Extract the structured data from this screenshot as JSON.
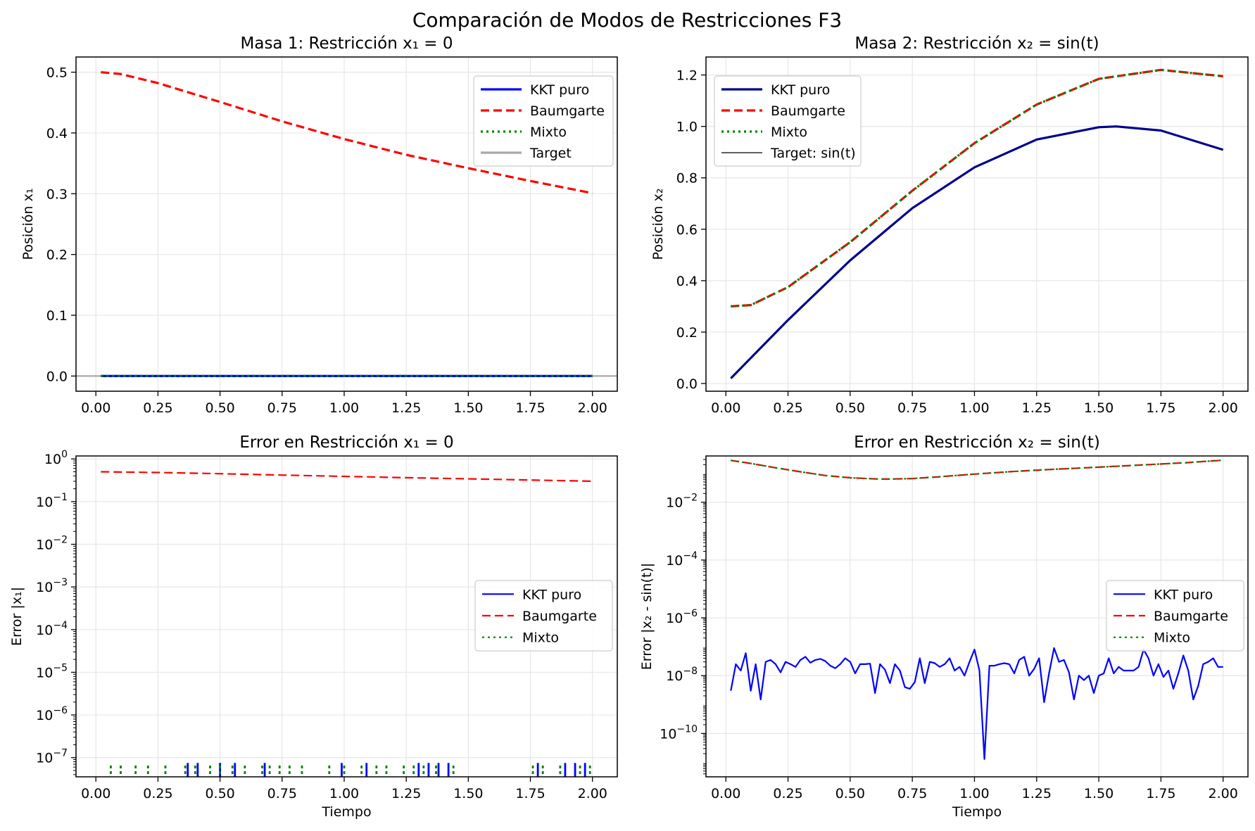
{
  "figure": {
    "suptitle": "Comparación de Modos de Restricciones F3"
  },
  "colors": {
    "kkt": "#0000ff",
    "kkt_dark": "#00008b",
    "baum": "#ff0000",
    "mixto": "#008000",
    "target": "#a9a9a9",
    "target_dark": "#000000",
    "grid": "#e6e6e6"
  },
  "chart_data": [
    {
      "id": "p1",
      "type": "line",
      "title": "Masa 1: Restricción x₁ = 0",
      "xlabel": "",
      "ylabel": "Posición x₁",
      "xlim": [
        -0.08,
        2.1
      ],
      "ylim": [
        -0.025,
        0.525
      ],
      "yscale": "linear",
      "grid": true,
      "legend": "top-right",
      "xticks": [
        0,
        0.25,
        0.5,
        0.75,
        1.0,
        1.25,
        1.5,
        1.75,
        2.0
      ],
      "xticklabels": [
        "0.00",
        "0.25",
        "0.50",
        "0.75",
        "1.00",
        "1.25",
        "1.50",
        "1.75",
        "2.00"
      ],
      "yticks": [
        0,
        0.1,
        0.2,
        0.3,
        0.4,
        0.5
      ],
      "yticklabels": [
        "0.0",
        "0.1",
        "0.2",
        "0.3",
        "0.4",
        "0.5"
      ],
      "hline": {
        "y": 0,
        "name": "Target"
      },
      "series": [
        {
          "name": "KKT puro",
          "style": "solid",
          "x": [
            0.02,
            2.0
          ],
          "y": [
            0,
            0
          ]
        },
        {
          "name": "Baumgarte",
          "style": "dashed",
          "x": [
            0.02,
            0.1,
            0.25,
            0.5,
            0.75,
            1.0,
            1.25,
            1.5,
            1.75,
            2.0
          ],
          "y": [
            0.5,
            0.497,
            0.482,
            0.451,
            0.419,
            0.39,
            0.364,
            0.342,
            0.321,
            0.301
          ]
        },
        {
          "name": "Mixto",
          "style": "dotted",
          "x": [
            0.02,
            2.0
          ],
          "y": [
            0,
            0
          ]
        }
      ],
      "legend_entries": [
        "KKT puro",
        "Baumgarte",
        "Mixto",
        "Target"
      ]
    },
    {
      "id": "p2",
      "type": "line",
      "title": "Masa 2: Restricción x₂ = sin(t)",
      "xlabel": "",
      "ylabel": "Posición x₂",
      "xlim": [
        -0.08,
        2.1
      ],
      "ylim": [
        -0.03,
        1.27
      ],
      "yscale": "linear",
      "grid": true,
      "legend": "top-left",
      "xticks": [
        0,
        0.25,
        0.5,
        0.75,
        1.0,
        1.25,
        1.5,
        1.75,
        2.0
      ],
      "xticklabels": [
        "0.00",
        "0.25",
        "0.50",
        "0.75",
        "1.00",
        "1.25",
        "1.50",
        "1.75",
        "2.00"
      ],
      "yticks": [
        0,
        0.2,
        0.4,
        0.6,
        0.8,
        1.0,
        1.2
      ],
      "yticklabels": [
        "0.0",
        "0.2",
        "0.4",
        "0.6",
        "0.8",
        "1.0",
        "1.2"
      ],
      "series": [
        {
          "name": "KKT puro",
          "style": "solid",
          "x": [
            0.02,
            0.25,
            0.5,
            0.75,
            1.0,
            1.25,
            1.5,
            1.57,
            1.75,
            2.0
          ],
          "y": [
            0.02,
            0.247,
            0.479,
            0.682,
            0.841,
            0.949,
            0.997,
            1.0,
            0.984,
            0.909
          ]
        },
        {
          "name": "Baumgarte",
          "style": "dashed",
          "x": [
            0.02,
            0.1,
            0.25,
            0.5,
            0.75,
            1.0,
            1.25,
            1.5,
            1.75,
            2.0
          ],
          "y": [
            0.3,
            0.305,
            0.375,
            0.55,
            0.75,
            0.935,
            1.085,
            1.185,
            1.22,
            1.195
          ]
        },
        {
          "name": "Mixto",
          "style": "dotted",
          "x": [
            0.02,
            0.1,
            0.25,
            0.5,
            0.75,
            1.0,
            1.25,
            1.5,
            1.75,
            2.0
          ],
          "y": [
            0.3,
            0.305,
            0.375,
            0.55,
            0.75,
            0.935,
            1.085,
            1.185,
            1.22,
            1.195
          ]
        }
      ],
      "legend_entries": [
        "KKT puro",
        "Baumgarte",
        "Mixto",
        "Target: sin(t)"
      ]
    },
    {
      "id": "p3",
      "type": "line",
      "title": "Error en Restricción x₁ = 0",
      "xlabel": "Tiempo",
      "ylabel": "Error |x₁|",
      "xlim": [
        -0.08,
        2.1
      ],
      "ylim_exp": [
        -7.45,
        0.07
      ],
      "yscale": "log",
      "grid": true,
      "legend": "center-right",
      "xticks": [
        0,
        0.25,
        0.5,
        0.75,
        1.0,
        1.25,
        1.5,
        1.75,
        2.0
      ],
      "xticklabels": [
        "0.00",
        "0.25",
        "0.50",
        "0.75",
        "1.00",
        "1.25",
        "1.50",
        "1.75",
        "2.00"
      ],
      "ytick_exponents": [
        -7,
        -6,
        -5,
        -4,
        -3,
        -2,
        -1,
        0
      ],
      "series": [
        {
          "name": "KKT puro",
          "style": "solid",
          "spike_x": [
            0.37,
            0.41,
            0.5,
            0.56,
            0.68,
            0.99,
            1.09,
            1.3,
            1.34,
            1.38,
            1.42,
            1.78,
            1.89,
            1.93,
            1.97
          ],
          "spike_value": 7.5e-08
        },
        {
          "name": "Baumgarte",
          "style": "dashed",
          "x": [
            0.02,
            0.25,
            0.5,
            0.75,
            1.0,
            1.25,
            1.5,
            1.75,
            2.0
          ],
          "y": [
            0.5,
            0.482,
            0.451,
            0.419,
            0.39,
            0.364,
            0.342,
            0.321,
            0.301
          ]
        },
        {
          "name": "Mixto",
          "style": "dotted",
          "spike_x": [
            0.06,
            0.1,
            0.16,
            0.21,
            0.28,
            0.36,
            0.4,
            0.46,
            0.5,
            0.55,
            0.6,
            0.67,
            0.7,
            0.74,
            0.78,
            0.83,
            0.94,
            1.0,
            1.07,
            1.13,
            1.17,
            1.24,
            1.28,
            1.32,
            1.37,
            1.44,
            1.76,
            1.8,
            1.87,
            1.95,
            1.99
          ],
          "spike_value": 7.5e-08
        }
      ],
      "legend_entries": [
        "KKT puro",
        "Baumgarte",
        "Mixto"
      ]
    },
    {
      "id": "p4",
      "type": "line",
      "title": "Error en Restricción x₂ = sin(t)",
      "xlabel": "Tiempo",
      "ylabel": "Error |x₂ - sin(t)|",
      "xlim": [
        -0.08,
        2.1
      ],
      "ylim_exp": [
        -11.5,
        -0.4
      ],
      "yscale": "log",
      "grid": true,
      "legend": "center-right",
      "xticks": [
        0,
        0.25,
        0.5,
        0.75,
        1.0,
        1.25,
        1.5,
        1.75,
        2.0
      ],
      "xticklabels": [
        "0.00",
        "0.25",
        "0.50",
        "0.75",
        "1.00",
        "1.25",
        "1.50",
        "1.75",
        "2.00"
      ],
      "ytick_exponents": [
        -10,
        -8,
        -6,
        -4,
        -2
      ],
      "series": [
        {
          "name": "KKT puro",
          "style": "solid",
          "x": [
            0.02,
            0.04,
            0.06,
            0.08,
            0.1,
            0.12,
            0.14,
            0.16,
            0.18,
            0.2,
            0.22,
            0.24,
            0.26,
            0.28,
            0.3,
            0.32,
            0.34,
            0.36,
            0.38,
            0.4,
            0.42,
            0.44,
            0.46,
            0.48,
            0.5,
            0.52,
            0.54,
            0.56,
            0.58,
            0.6,
            0.62,
            0.64,
            0.66,
            0.68,
            0.7,
            0.72,
            0.74,
            0.76,
            0.78,
            0.8,
            0.82,
            0.84,
            0.86,
            0.88,
            0.9,
            0.92,
            0.94,
            0.96,
            0.98,
            1.0,
            1.02,
            1.04,
            1.06,
            1.08,
            1.1,
            1.12,
            1.14,
            1.16,
            1.18,
            1.2,
            1.22,
            1.24,
            1.26,
            1.28,
            1.3,
            1.32,
            1.34,
            1.36,
            1.38,
            1.4,
            1.42,
            1.44,
            1.46,
            1.48,
            1.5,
            1.52,
            1.54,
            1.56,
            1.58,
            1.6,
            1.62,
            1.64,
            1.66,
            1.68,
            1.7,
            1.72,
            1.74,
            1.76,
            1.78,
            1.8,
            1.82,
            1.84,
            1.86,
            1.88,
            1.9,
            1.92,
            1.94,
            1.96,
            1.98,
            2.0
          ],
          "y": [
            3e-09,
            2.5e-08,
            1.5e-08,
            6e-08,
            3e-09,
            2.5e-08,
            1.5e-09,
            3e-08,
            3.5e-08,
            2.5e-08,
            1.3e-08,
            3e-08,
            2.5e-08,
            2e-08,
            3.5e-08,
            4.5e-08,
            2.8e-08,
            3.5e-08,
            3.8e-08,
            3.2e-08,
            2.2e-08,
            1.8e-08,
            2.5e-08,
            4e-08,
            3e-08,
            1.2e-08,
            2.5e-08,
            2.5e-08,
            2.6e-08,
            2.5e-09,
            2.5e-08,
            1.6e-08,
            5.5e-09,
            2.5e-08,
            1.5e-08,
            4e-09,
            3.5e-09,
            6e-09,
            4e-08,
            5.5e-09,
            3e-08,
            2.7e-08,
            2e-08,
            2.5e-08,
            4e-08,
            1.5e-08,
            2e-08,
            1e-08,
            3e-08,
            8e-08,
            1.5e-08,
            1.3e-11,
            2.2e-08,
            2.2e-08,
            2.5e-08,
            2.7e-08,
            2.5e-08,
            1.2e-08,
            3.5e-08,
            4.5e-08,
            1e-08,
            1.7e-08,
            4e-08,
            1.2e-09,
            1.2e-08,
            9e-08,
            3e-08,
            3.5e-08,
            1.3e-08,
            1.5e-09,
            1e-08,
            7e-09,
            1e-08,
            2.5e-09,
            1e-08,
            1.2e-08,
            4e-08,
            1.2e-08,
            2e-08,
            1.5e-08,
            1.5e-08,
            1.5e-08,
            2e-08,
            8e-08,
            4e-08,
            1e-08,
            2.5e-08,
            9e-09,
            1.5e-08,
            3.5e-09,
            1.2e-08,
            5e-08,
            1.5e-08,
            1.5e-09,
            4.5e-09,
            2.5e-08,
            3e-08,
            4e-08,
            2e-08,
            2e-08
          ]
        },
        {
          "name": "Baumgarte",
          "style": "dashed",
          "x": [
            0.02,
            0.1,
            0.2,
            0.3,
            0.4,
            0.5,
            0.6,
            0.65,
            0.75,
            0.85,
            1.0,
            1.15,
            1.3,
            1.5,
            1.7,
            1.85,
            2.0
          ],
          "y": [
            0.28,
            0.22,
            0.155,
            0.113,
            0.084,
            0.07,
            0.064,
            0.063,
            0.066,
            0.075,
            0.094,
            0.115,
            0.135,
            0.163,
            0.2,
            0.233,
            0.285
          ]
        },
        {
          "name": "Mixto",
          "style": "dotted",
          "x": [
            0.02,
            0.1,
            0.2,
            0.3,
            0.4,
            0.5,
            0.6,
            0.65,
            0.75,
            0.85,
            1.0,
            1.15,
            1.3,
            1.5,
            1.7,
            1.85,
            2.0
          ],
          "y": [
            0.28,
            0.22,
            0.155,
            0.113,
            0.084,
            0.07,
            0.064,
            0.063,
            0.066,
            0.075,
            0.094,
            0.115,
            0.135,
            0.163,
            0.2,
            0.233,
            0.285
          ]
        }
      ],
      "legend_entries": [
        "KKT puro",
        "Baumgarte",
        "Mixto"
      ]
    }
  ]
}
